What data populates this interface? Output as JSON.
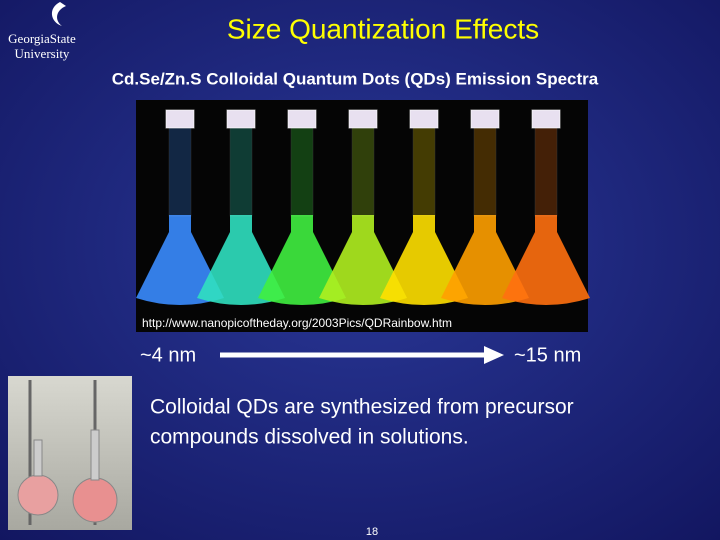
{
  "header": {
    "logo": [
      "GeorgiaState",
      "University"
    ],
    "title": "Size Quantization Effects",
    "subtitle": "Cd.Se/Zn.S Colloidal Quantum Dots (QDs) Emission Spectra"
  },
  "image": {
    "caption": "http://www.nanopicoftheday.org/2003Pics/QDRainbow.htm"
  },
  "scale": {
    "start": "~4 nm",
    "end": "~15 nm"
  },
  "body": {
    "lines": [
      "Colloidal QDs are synthesized from precursor",
      "compounds dissolved in solutions."
    ]
  },
  "footer": {
    "page_number": "18"
  }
}
